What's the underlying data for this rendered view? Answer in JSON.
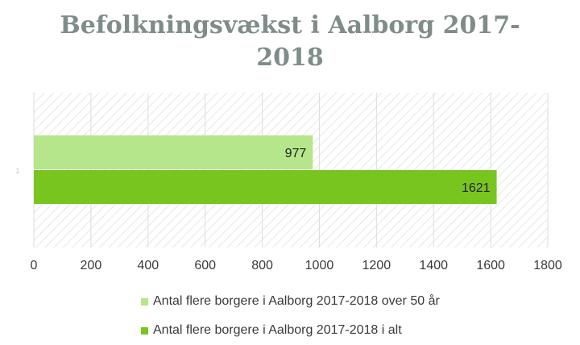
{
  "title_line1": "Befolkningsvækst i Aalborg 2017-",
  "title_line2": "2018",
  "colors": {
    "series_light": "#b5e68b",
    "series_dark": "#79c51f",
    "grid": "#d7dedd",
    "hatch": "#e3e8e6",
    "tick_text": "#3a3a3a"
  },
  "chart_data": {
    "type": "bar",
    "orientation": "horizontal",
    "title": "Befolkningsvækst i Aalborg 2017-2018",
    "categories": [
      "1"
    ],
    "series": [
      {
        "name": "Antal flere borgere i Aalborg 2017-2018 over 50 år",
        "values": [
          977
        ]
      },
      {
        "name": "Antal flere borgere i Aalborg 2017-2018 i alt",
        "values": [
          1621
        ]
      }
    ],
    "xlim": [
      0,
      1800
    ],
    "xticks": [
      0,
      200,
      400,
      600,
      800,
      1000,
      1200,
      1400,
      1600,
      1800
    ],
    "grid": true,
    "legend_position": "bottom"
  }
}
